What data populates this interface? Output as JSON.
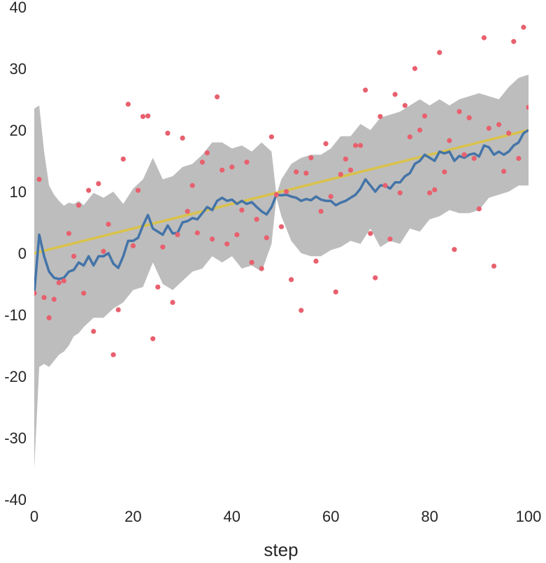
{
  "chart_data": {
    "type": "line",
    "xlabel": "step",
    "ylabel": "",
    "title": "",
    "xlim": [
      0,
      100
    ],
    "ylim": [
      -40,
      40
    ],
    "xticks": [
      0,
      20,
      40,
      60,
      80,
      100
    ],
    "yticks": [
      -40,
      -30,
      -20,
      -10,
      0,
      10,
      20,
      30,
      40
    ],
    "grid": false,
    "legend": "none",
    "colors": {
      "band": "#bdbdbd",
      "estimate": "#4474a8",
      "truth": "#d9c24a",
      "observations": "#e8606e"
    },
    "truth_line": {
      "x": [
        0,
        100
      ],
      "y": [
        0,
        20
      ]
    },
    "confidence_band": {
      "x": [
        0,
        1,
        2,
        3,
        4,
        5,
        6,
        7,
        8,
        9,
        10,
        12,
        14,
        16,
        18,
        20,
        22,
        24,
        26,
        28,
        30,
        32,
        34,
        36,
        38,
        40,
        42,
        44,
        46,
        48,
        49,
        50,
        52,
        54,
        56,
        58,
        60,
        62,
        64,
        66,
        68,
        70,
        72,
        74,
        76,
        78,
        80,
        82,
        84,
        86,
        88,
        90,
        92,
        94,
        96,
        98,
        100
      ],
      "upper": [
        23.5,
        24.0,
        16.5,
        11.0,
        9.5,
        8.5,
        7.7,
        8.2,
        8.0,
        8.5,
        7.8,
        9.8,
        9.0,
        10.0,
        8.0,
        10.5,
        12.0,
        15.5,
        12.0,
        12.5,
        14.0,
        14.5,
        16.0,
        18.0,
        18.0,
        17.0,
        17.5,
        16.5,
        18.0,
        16.5,
        9.5,
        12.0,
        14.5,
        15.5,
        16.0,
        16.0,
        17.0,
        19.0,
        19.0,
        21.0,
        20.0,
        22.0,
        22.5,
        23.0,
        24.0,
        25.0,
        24.0,
        25.0,
        24.0,
        25.0,
        25.5,
        26.0,
        25.5,
        25.0,
        27.0,
        28.5,
        29.0
      ],
      "lower": [
        -35.0,
        -18.5,
        -18.0,
        -18.5,
        -17.5,
        -16.5,
        -16.0,
        -15.0,
        -13.5,
        -13.0,
        -12.0,
        -10.5,
        -10.5,
        -9.0,
        -8.0,
        -6.0,
        -5.5,
        -1.5,
        -5.0,
        -6.0,
        -4.5,
        -3.0,
        -2.5,
        -0.5,
        -1.5,
        -0.5,
        -2.5,
        -2.0,
        -3.0,
        1.5,
        9.0,
        6.0,
        2.0,
        0.0,
        -0.5,
        -0.5,
        0.5,
        1.0,
        2.0,
        1.5,
        4.0,
        1.0,
        2.0,
        1.5,
        4.0,
        3.5,
        5.5,
        6.0,
        7.0,
        6.5,
        6.5,
        7.0,
        9.0,
        9.5,
        10.0,
        11.0,
        11.0
      ]
    },
    "estimate": {
      "x": [
        0,
        1,
        2,
        3,
        4,
        5,
        6,
        7,
        8,
        9,
        10,
        11,
        12,
        13,
        14,
        15,
        16,
        17,
        18,
        19,
        20,
        21,
        22,
        23,
        24,
        25,
        26,
        27,
        28,
        29,
        30,
        31,
        32,
        33,
        34,
        35,
        36,
        37,
        38,
        39,
        40,
        41,
        42,
        43,
        44,
        45,
        46,
        47,
        48,
        49,
        50,
        51,
        52,
        53,
        54,
        55,
        56,
        57,
        58,
        59,
        60,
        61,
        62,
        63,
        64,
        65,
        66,
        67,
        68,
        69,
        70,
        71,
        72,
        73,
        74,
        75,
        76,
        77,
        78,
        79,
        80,
        81,
        82,
        83,
        84,
        85,
        86,
        87,
        88,
        89,
        90,
        91,
        92,
        93,
        94,
        95,
        96,
        97,
        98,
        99,
        100
      ],
      "y": [
        -6.5,
        3.0,
        -0.5,
        -3.0,
        -4.0,
        -4.2,
        -4.0,
        -3.0,
        -2.7,
        -1.5,
        -2.0,
        -0.5,
        -2.0,
        -0.5,
        -0.5,
        0.0,
        -1.7,
        -2.4,
        -0.5,
        2.0,
        2.0,
        2.5,
        4.5,
        6.2,
        4.0,
        3.5,
        3.0,
        4.5,
        3.2,
        3.3,
        5.0,
        5.2,
        5.7,
        5.5,
        6.5,
        7.5,
        7.0,
        8.5,
        9.0,
        8.5,
        8.7,
        8.0,
        8.5,
        8.0,
        8.3,
        7.5,
        6.8,
        6.3,
        7.5,
        9.5,
        9.4,
        9.5,
        9.2,
        9.0,
        8.5,
        8.8,
        8.6,
        9.2,
        8.7,
        8.5,
        8.5,
        7.8,
        8.2,
        8.5,
        9.0,
        9.5,
        10.5,
        12.0,
        11.0,
        10.0,
        11.0,
        11.0,
        10.5,
        11.5,
        11.5,
        12.5,
        13.0,
        14.5,
        15.0,
        16.0,
        15.5,
        15.0,
        16.5,
        16.2,
        16.5,
        15.0,
        15.8,
        15.5,
        16.0,
        16.2,
        15.7,
        17.5,
        17.2,
        16.0,
        16.5,
        16.0,
        16.5,
        17.5,
        18.0,
        19.5,
        20.0
      ]
    },
    "observations": {
      "x": [
        0,
        1,
        2,
        3,
        4,
        5,
        6,
        7,
        8,
        9,
        10,
        11,
        12,
        13,
        14,
        15,
        16,
        17,
        18,
        19,
        20,
        21,
        22,
        23,
        24,
        25,
        26,
        27,
        28,
        29,
        30,
        31,
        32,
        33,
        34,
        35,
        36,
        37,
        38,
        39,
        40,
        41,
        42,
        43,
        44,
        45,
        46,
        47,
        48,
        49,
        50,
        51,
        52,
        53,
        54,
        55,
        56,
        57,
        58,
        59,
        60,
        61,
        62,
        63,
        64,
        65,
        66,
        67,
        68,
        69,
        70,
        71,
        72,
        73,
        74,
        75,
        76,
        77,
        78,
        79,
        80,
        81,
        82,
        83,
        84,
        85,
        86,
        87,
        88,
        89,
        90,
        91,
        92,
        93,
        94,
        95,
        96,
        97,
        98,
        99,
        100
      ],
      "y": [
        -6.5,
        12.0,
        -7.2,
        -10.5,
        -7.5,
        -4.8,
        -4.5,
        3.2,
        -0.5,
        7.8,
        -6.5,
        10.2,
        -12.7,
        11.3,
        0.3,
        4.7,
        -16.5,
        -9.2,
        15.3,
        24.2,
        1.2,
        10.2,
        22.2,
        22.3,
        -13.9,
        -5.5,
        1.0,
        19.5,
        -8.0,
        3.0,
        18.7,
        6.8,
        11.0,
        3.3,
        14.8,
        16.3,
        2.3,
        25.4,
        13.5,
        1.5,
        14.0,
        3.0,
        7.0,
        14.8,
        -1.5,
        5.5,
        -2.5,
        2.5,
        18.9,
        9.5,
        4.3,
        10.0,
        -4.3,
        13.2,
        -9.3,
        13.0,
        15.5,
        -1.3,
        6.8,
        17.8,
        9.2,
        -6.3,
        12.8,
        15.3,
        13.5,
        17.5,
        17.5,
        26.5,
        3.2,
        -4.0,
        22.2,
        11.0,
        2.3,
        25.8,
        9.8,
        24.0,
        18.9,
        30.0,
        20.0,
        22.3,
        9.8,
        10.3,
        32.6,
        13.2,
        18.3,
        0.6,
        23.0,
        16.0,
        22.0,
        15.4,
        7.2,
        35.0,
        20.3,
        -2.1,
        20.9,
        13.3,
        19.5,
        34.4,
        15.4,
        36.7,
        23.7
      ]
    }
  }
}
